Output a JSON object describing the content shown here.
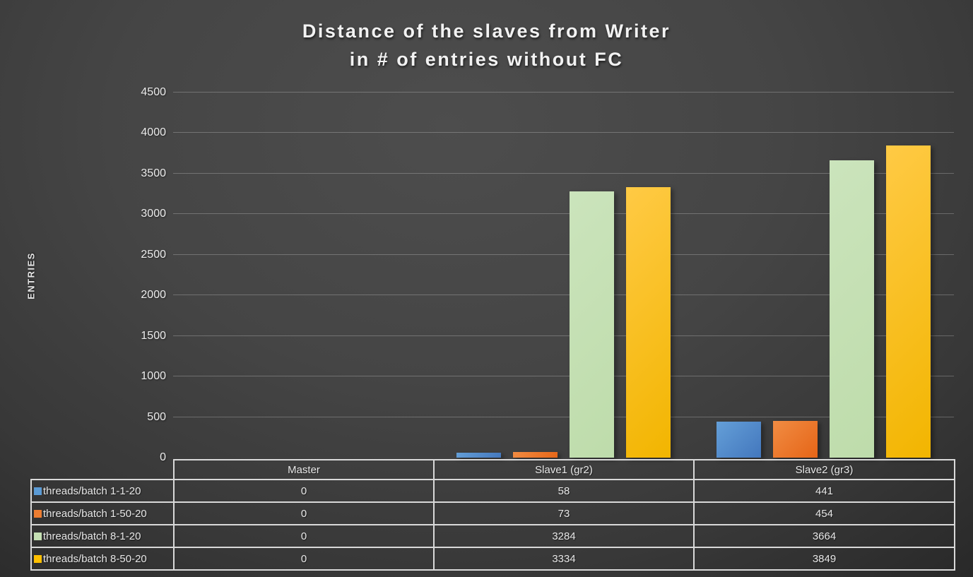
{
  "title": {
    "line1": "Distance of the slaves from Writer",
    "line2": "in # of entries without FC"
  },
  "chart_data": {
    "type": "bar",
    "title": "Distance of the slaves from Writer in # of entries without FC",
    "ylabel": "ENTRIES",
    "xlabel": "",
    "categories": [
      "Master",
      "Slave1 (gr2)",
      "Slave2 (gr3)"
    ],
    "series": [
      {
        "name": "threads/batch 1-1-20",
        "values": [
          0,
          58,
          441
        ],
        "color": "#5B9BD5",
        "fill_top": "#649fd8",
        "fill_bottom": "#4377bd"
      },
      {
        "name": "threads/batch 1-50-20",
        "values": [
          0,
          73,
          454
        ],
        "color": "#ED7D31",
        "fill_top": "#f18c43",
        "fill_bottom": "#e56517"
      },
      {
        "name": "threads/batch 8-1-20",
        "values": [
          0,
          3284,
          3664
        ],
        "color": "#C5E0B4",
        "fill_top": "#cbe4bc",
        "fill_bottom": "#bedcab"
      },
      {
        "name": "threads/batch 8-50-20",
        "values": [
          0,
          3334,
          3849
        ],
        "color": "#FFC000",
        "fill_top": "#ffca45",
        "fill_bottom": "#f2b500"
      }
    ],
    "ylim": [
      0,
      4500
    ],
    "ytick_step": 500,
    "yticks": [
      0,
      500,
      1000,
      1500,
      2000,
      2500,
      3000,
      3500,
      4000,
      4500
    ],
    "grid": true,
    "legend_position": "table-left",
    "table_values": [
      [
        "0",
        "58",
        "441"
      ],
      [
        "0",
        "73",
        "454"
      ],
      [
        "0",
        "3284",
        "3664"
      ],
      [
        "0",
        "3334",
        "3849"
      ]
    ]
  },
  "colors": {
    "background_center": "#4d4d4d",
    "background_edge": "#222222",
    "gridline": "rgba(255,255,255,0.24)",
    "table_border": "#d9d9d9",
    "text": "#ececec"
  }
}
